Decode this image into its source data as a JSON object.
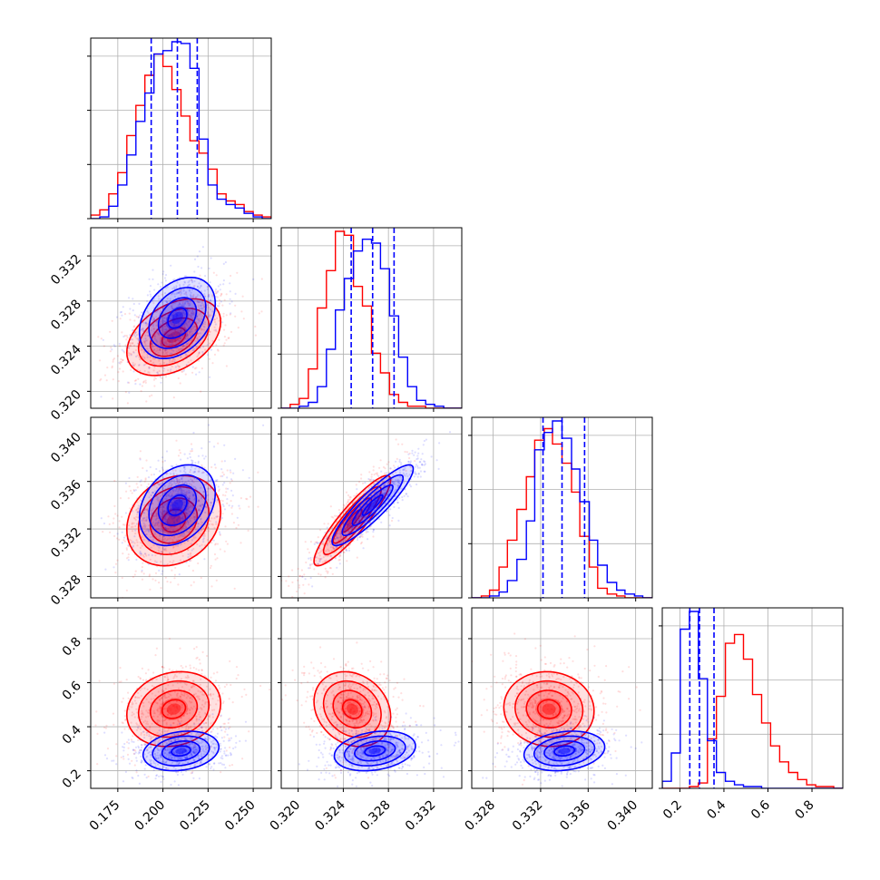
{
  "chart_data": {
    "type": "corner",
    "colors": {
      "series_a": "#0000ff",
      "series_b": "#ff0000",
      "grid": "#b0b0b0"
    },
    "grid": true,
    "parameters": [
      {
        "range": [
          0.16,
          0.26
        ],
        "ticks": [
          0.175,
          0.2,
          0.225,
          0.25
        ],
        "tick_labels": [
          "0.175",
          "0.200",
          "0.225",
          "0.250"
        ]
      },
      {
        "range": [
          0.3185,
          0.3345
        ],
        "ticks": [
          0.32,
          0.324,
          0.328,
          0.332
        ],
        "tick_labels": [
          "0.320",
          "0.324",
          "0.328",
          "0.332"
        ]
      },
      {
        "range": [
          0.3262,
          0.3414
        ],
        "ticks": [
          0.328,
          0.332,
          0.336,
          0.34
        ],
        "tick_labels": [
          "0.328",
          "0.332",
          "0.336",
          "0.340"
        ]
      },
      {
        "range": [
          0.12,
          0.94
        ],
        "ticks": [
          0.2,
          0.4,
          0.6,
          0.8
        ],
        "tick_labels": [
          "0.2",
          "0.4",
          "0.6",
          "0.8"
        ]
      }
    ],
    "diagonals": [
      {
        "series_a": {
          "edges": [
            0.16,
            0.165,
            0.17,
            0.175,
            0.18,
            0.185,
            0.19,
            0.195,
            0.2,
            0.205,
            0.21,
            0.215,
            0.22,
            0.225,
            0.23,
            0.235,
            0.24,
            0.245,
            0.25,
            0.255,
            0.26
          ],
          "counts": [
            0,
            0.01,
            0.07,
            0.19,
            0.36,
            0.55,
            0.71,
            0.93,
            0.95,
            1.0,
            0.99,
            0.85,
            0.45,
            0.19,
            0.11,
            0.08,
            0.06,
            0.03,
            0.01,
            0.0
          ]
        },
        "series_b": {
          "edges": [
            0.16,
            0.165,
            0.17,
            0.175,
            0.18,
            0.185,
            0.19,
            0.195,
            0.2,
            0.205,
            0.21,
            0.215,
            0.22,
            0.225,
            0.23,
            0.235,
            0.24,
            0.245,
            0.25,
            0.255,
            0.26
          ],
          "counts": [
            0.02,
            0.05,
            0.14,
            0.26,
            0.47,
            0.64,
            0.81,
            0.93,
            0.86,
            0.73,
            0.58,
            0.44,
            0.37,
            0.28,
            0.14,
            0.1,
            0.08,
            0.04,
            0.02,
            0.01
          ]
        },
        "quantiles": [
          0.1935,
          0.208,
          0.219
        ]
      },
      {
        "series_a": {
          "edges": [
            0.3185,
            0.3193,
            0.3201,
            0.3209,
            0.3217,
            0.3225,
            0.3233,
            0.3241,
            0.3249,
            0.3257,
            0.3265,
            0.3273,
            0.3281,
            0.3289,
            0.3297,
            0.3305,
            0.3313,
            0.3321,
            0.3329,
            0.3337,
            0.3345
          ],
          "counts": [
            0,
            0,
            0.01,
            0.03,
            0.11,
            0.3,
            0.5,
            0.66,
            0.8,
            0.86,
            0.84,
            0.71,
            0.47,
            0.26,
            0.11,
            0.04,
            0.02,
            0.01,
            0,
            0
          ]
        },
        "series_b": {
          "edges": [
            0.3185,
            0.3193,
            0.3201,
            0.3209,
            0.3217,
            0.3225,
            0.3233,
            0.3241,
            0.3249,
            0.3257,
            0.3265,
            0.3273,
            0.3281,
            0.3289,
            0.3297,
            0.3305,
            0.3313,
            0.3321,
            0.3329,
            0.3337,
            0.3345
          ],
          "counts": [
            0,
            0.02,
            0.05,
            0.2,
            0.51,
            0.7,
            0.9,
            0.88,
            0.62,
            0.52,
            0.28,
            0.18,
            0.07,
            0.03,
            0.01,
            0.01,
            0,
            0,
            0,
            0
          ]
        },
        "quantiles": [
          0.3247,
          0.3266,
          0.3285
        ]
      },
      {
        "series_a": {
          "edges": [
            0.3262,
            0.327,
            0.3277,
            0.3285,
            0.3292,
            0.33,
            0.3308,
            0.3315,
            0.3323,
            0.333,
            0.3338,
            0.3346,
            0.3353,
            0.3361,
            0.3368,
            0.3376,
            0.3384,
            0.3391,
            0.3399,
            0.3406,
            0.3414
          ],
          "counts": [
            0,
            0,
            0.01,
            0.03,
            0.09,
            0.2,
            0.4,
            0.77,
            0.86,
            0.92,
            0.83,
            0.67,
            0.5,
            0.3,
            0.17,
            0.08,
            0.04,
            0.02,
            0.01,
            0
          ]
        },
        "series_b": {
          "edges": [
            0.3262,
            0.327,
            0.3277,
            0.3285,
            0.3292,
            0.33,
            0.3308,
            0.3315,
            0.3323,
            0.333,
            0.3338,
            0.3346,
            0.3353,
            0.3361,
            0.3368,
            0.3376,
            0.3384,
            0.3391,
            0.3399,
            0.3406,
            0.3414
          ],
          "counts": [
            0,
            0.01,
            0.04,
            0.16,
            0.3,
            0.46,
            0.63,
            0.82,
            0.88,
            0.8,
            0.7,
            0.55,
            0.32,
            0.16,
            0.05,
            0.02,
            0.01,
            0,
            0,
            0
          ]
        },
        "quantiles": [
          0.3322,
          0.3338,
          0.3357
        ]
      },
      {
        "series_a": {
          "edges": [
            0.12,
            0.161,
            0.202,
            0.243,
            0.284,
            0.325,
            0.366,
            0.407,
            0.448,
            0.489,
            0.53,
            0.571,
            0.612,
            0.653,
            0.694,
            0.735,
            0.776,
            0.817,
            0.858,
            0.899,
            0.94
          ],
          "counts": [
            0.04,
            0.2,
            0.9,
            1.0,
            0.62,
            0.27,
            0.09,
            0.04,
            0.02,
            0.01,
            0.01,
            0,
            0,
            0,
            0,
            0,
            0,
            0,
            0,
            0
          ]
        },
        "series_b": {
          "edges": [
            0.12,
            0.161,
            0.202,
            0.243,
            0.284,
            0.325,
            0.366,
            0.407,
            0.448,
            0.489,
            0.53,
            0.571,
            0.612,
            0.653,
            0.694,
            0.735,
            0.776,
            0.817,
            0.858,
            0.899,
            0.94
          ],
          "counts": [
            0,
            0,
            0,
            0.01,
            0.03,
            0.28,
            0.52,
            0.82,
            0.87,
            0.73,
            0.53,
            0.37,
            0.24,
            0.15,
            0.09,
            0.05,
            0.02,
            0.01,
            0.01,
            0
          ]
        },
        "quantiles": [
          0.245,
          0.289,
          0.355
        ]
      }
    ],
    "joint": [
      {
        "row": 1,
        "col": 0,
        "series_a": {
          "mean": [
            0.208,
            0.3265
          ],
          "sd": [
            0.0105,
            0.0018
          ],
          "corr": 0.35
        },
        "series_b": {
          "mean": [
            0.206,
            0.3248
          ],
          "sd": [
            0.013,
            0.0017
          ],
          "corr": 0.4
        }
      },
      {
        "row": 2,
        "col": 0,
        "series_a": {
          "mean": [
            0.208,
            0.334
          ],
          "sd": [
            0.0105,
            0.0017
          ],
          "corr": 0.3
        },
        "series_b": {
          "mean": [
            0.206,
            0.3327
          ],
          "sd": [
            0.013,
            0.0019
          ],
          "corr": 0.2
        }
      },
      {
        "row": 2,
        "col": 1,
        "series_a": {
          "mean": [
            0.3266,
            0.334
          ],
          "sd": [
            0.0018,
            0.0017
          ],
          "corr": 0.9
        },
        "series_b": {
          "mean": [
            0.3248,
            0.3327
          ],
          "sd": [
            0.0017,
            0.0019
          ],
          "corr": 0.9
        }
      },
      {
        "row": 3,
        "col": 0,
        "series_a": {
          "mean": [
            0.21,
            0.29
          ],
          "sd": [
            0.0105,
            0.045
          ],
          "corr": 0.2
        },
        "series_b": {
          "mean": [
            0.206,
            0.48
          ],
          "sd": [
            0.013,
            0.085
          ],
          "corr": 0.15
        }
      },
      {
        "row": 3,
        "col": 1,
        "series_a": {
          "mean": [
            0.3268,
            0.29
          ],
          "sd": [
            0.0018,
            0.045
          ],
          "corr": 0.25
        },
        "series_b": {
          "mean": [
            0.3248,
            0.48
          ],
          "sd": [
            0.0017,
            0.085
          ],
          "corr": -0.2
        }
      },
      {
        "row": 3,
        "col": 2,
        "series_a": {
          "mean": [
            0.334,
            0.29
          ],
          "sd": [
            0.0017,
            0.045
          ],
          "corr": 0.2
        },
        "series_b": {
          "mean": [
            0.3327,
            0.48
          ],
          "sd": [
            0.0019,
            0.085
          ],
          "corr": -0.05
        }
      }
    ]
  }
}
